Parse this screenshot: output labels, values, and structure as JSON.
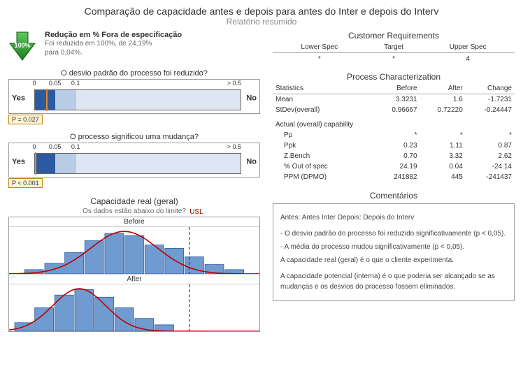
{
  "title": "Comparação de capacidade antes e depois para antes do Inter e depois do Interv",
  "subtitle": "Relatório resumido",
  "arrow": {
    "color": "#2fa52f",
    "label": "100%"
  },
  "reduction": {
    "heading": "Redução em % Fora de especificação",
    "line1": "Foi reduzida em 100%, de 24,19%",
    "line2": "para 0,04%."
  },
  "q1": {
    "title": "O desvio padrão do processo foi reduzido?",
    "yes": "Yes",
    "no": "No",
    "ticks": [
      "0",
      "0.05",
      "0.1",
      "> 0.5"
    ],
    "tick_positions": [
      0,
      10,
      20,
      100
    ],
    "p_value": 0.027,
    "p_label": "P = 0.027",
    "dark_fill_to": 10,
    "light_fill_from": 10,
    "light_fill_to": 20,
    "dark_color": "#2c5aa0",
    "light_color": "#b9cce5"
  },
  "q2": {
    "title": "O processo significou uma mudança?",
    "yes": "Yes",
    "no": "No",
    "ticks": [
      "0",
      "0.05",
      "0.1",
      "> 0.5"
    ],
    "tick_positions": [
      0,
      10,
      20,
      100
    ],
    "p_value": 0.0005,
    "p_label": "P < 0.001",
    "dark_fill_to": 10,
    "light_fill_from": 10,
    "light_fill_to": 20,
    "dark_color": "#2c5aa0",
    "light_color": "#b9cce5"
  },
  "cap_chart": {
    "title": "Capacidade real (geral)",
    "subtitle": "Os dados estão abaixo do limite?",
    "usl_label": "USL",
    "usl_x": 0.72,
    "before": {
      "label": "Before",
      "bars": [
        {
          "x": 0.1,
          "h": 0.1
        },
        {
          "x": 0.18,
          "h": 0.25
        },
        {
          "x": 0.26,
          "h": 0.5
        },
        {
          "x": 0.34,
          "h": 0.78
        },
        {
          "x": 0.42,
          "h": 0.95
        },
        {
          "x": 0.5,
          "h": 0.9
        },
        {
          "x": 0.58,
          "h": 0.68
        },
        {
          "x": 0.66,
          "h": 0.6
        },
        {
          "x": 0.74,
          "h": 0.4
        },
        {
          "x": 0.82,
          "h": 0.22
        },
        {
          "x": 0.9,
          "h": 0.1
        }
      ],
      "bar_color": "#6f9bd1",
      "bar_border": "#2c5aa0",
      "curve_peak_x": 0.46,
      "curve_spread": 0.28,
      "curve_color": "#be0000"
    },
    "after": {
      "label": "After",
      "bars": [
        {
          "x": 0.06,
          "h": 0.2
        },
        {
          "x": 0.14,
          "h": 0.55
        },
        {
          "x": 0.22,
          "h": 0.85
        },
        {
          "x": 0.3,
          "h": 0.98
        },
        {
          "x": 0.38,
          "h": 0.8
        },
        {
          "x": 0.46,
          "h": 0.55
        },
        {
          "x": 0.54,
          "h": 0.3
        },
        {
          "x": 0.62,
          "h": 0.15
        }
      ],
      "bar_color": "#6f9bd1",
      "bar_border": "#2c5aa0",
      "curve_peak_x": 0.28,
      "curve_spread": 0.22,
      "curve_color": "#be0000"
    }
  },
  "requirements": {
    "title": "Customer Requirements",
    "headers": [
      "Lower Spec",
      "Target",
      "Upper Spec"
    ],
    "values": [
      "*",
      "*",
      "4"
    ]
  },
  "characterization": {
    "title": "Process Characterization",
    "headers": [
      "Statistics",
      "Before",
      "After",
      "Change"
    ],
    "rows": [
      {
        "label": "Mean",
        "b": "3.3231",
        "a": "1.6",
        "c": "-1.7231"
      },
      {
        "label": "StDev(overall)",
        "b": "0.96667",
        "a": "0.72220",
        "c": "-0.24447"
      }
    ],
    "cap_header": "Actual (overall) capability",
    "cap_rows": [
      {
        "label": "Pp",
        "b": "*",
        "a": "*",
        "c": "*"
      },
      {
        "label": "Ppk",
        "b": "0.23",
        "a": "1.11",
        "c": "0.87"
      },
      {
        "label": "Z.Bench",
        "b": "0.70",
        "a": "3.32",
        "c": "2.62"
      },
      {
        "label": "% Out of spec",
        "b": "24.19",
        "a": "0.04",
        "c": "-24.14"
      },
      {
        "label": "PPM (DPMO)",
        "b": "241882",
        "a": "445",
        "c": "-241437"
      }
    ]
  },
  "comments": {
    "title": "Comentários",
    "lines": [
      "Antes: Antes Inter Depois: Depois do Interv",
      "- O desvio padrão do processo foi reduzido significativamente (p < 0,05).",
      "- A média do processo mudou significativamente (p < 0,05).",
      "A capacidade real (geral) é o que o cliente experimenta.",
      "A capacidade potencial (interna) é o que poderia ser alcançado se as mudanças e os desvios do processo fossem eliminados."
    ]
  }
}
